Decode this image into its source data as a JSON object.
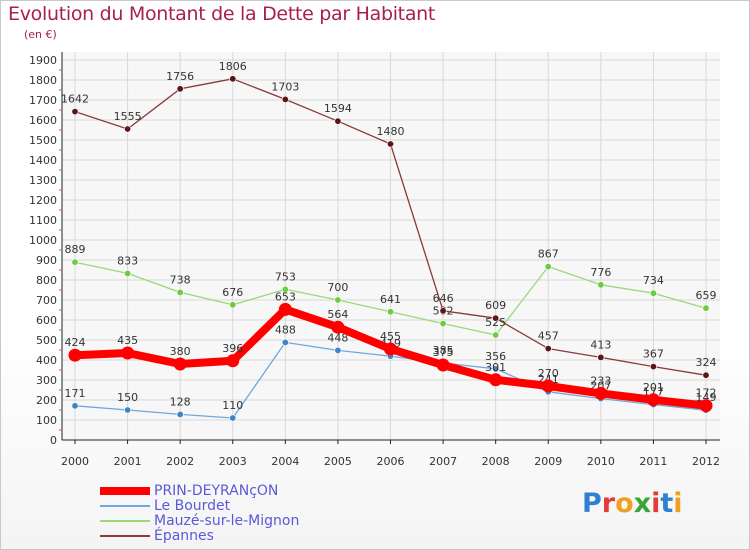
{
  "header": {
    "title": "Evolution du Montant de la Dette par Habitant",
    "subtitle": "(en €)"
  },
  "logo": {
    "text": "Proxiti"
  },
  "chart_data": {
    "type": "line",
    "title": "Evolution du Montant de la Dette par Habitant",
    "subtitle": "(en €)",
    "xlabel": "",
    "ylabel": "",
    "categories": [
      "2000",
      "2001",
      "2002",
      "2003",
      "2004",
      "2005",
      "2006",
      "2007",
      "2008",
      "2009",
      "2010",
      "2011",
      "2012"
    ],
    "ylim": [
      0,
      1900
    ],
    "yticks": [
      0,
      100,
      200,
      300,
      400,
      500,
      600,
      700,
      800,
      900,
      1000,
      1100,
      1200,
      1300,
      1400,
      1500,
      1600,
      1700,
      1800,
      1900
    ],
    "grid": true,
    "legend_placement": "bottom",
    "series": [
      {
        "name": "Mauzé-sur-le-Mignon",
        "color": "#99d97a",
        "marker": "#6ccc3e",
        "values": [
          889,
          833,
          738,
          676,
          753,
          700,
          641,
          582,
          525,
          867,
          776,
          734,
          659
        ],
        "labels": [
          "889",
          "833",
          "738",
          "676",
          "753",
          "700",
          "641",
          "582",
          "525",
          "867",
          "776",
          "734",
          "659"
        ]
      },
      {
        "name": "Épannes",
        "color": "#8b3a3a",
        "marker": "#5c1414",
        "values": [
          1642,
          1555,
          1756,
          1806,
          1703,
          1594,
          1480,
          646,
          609,
          457,
          413,
          367,
          324
        ],
        "labels": [
          "1642",
          "1555",
          "1756",
          "1806",
          "1703",
          "1594",
          "1480",
          "646",
          "609",
          "457",
          "413",
          "367",
          "324"
        ]
      },
      {
        "name": "Le Bourdet",
        "color": "#6fa8dc",
        "marker": "#3d85c6",
        "values": [
          171,
          150,
          128,
          110,
          488,
          448,
          419,
          385,
          356,
          241,
          207,
          177,
          149
        ],
        "labels": [
          "171",
          "150",
          "128",
          "110",
          "488",
          "448",
          "419",
          "385",
          "356",
          "241",
          "207",
          "177",
          "149"
        ]
      },
      {
        "name": "PRIN-DEYRANçON",
        "color": "#ff0000",
        "marker": "#ff0000",
        "values": [
          424,
          435,
          380,
          396,
          653,
          564,
          455,
          375,
          301,
          270,
          233,
          201,
          172
        ],
        "labels": [
          "424",
          "435",
          "380",
          "396",
          "653",
          "564",
          "455",
          "375",
          "301",
          "270",
          "233",
          "201",
          "172"
        ]
      }
    ]
  },
  "legend": {
    "items": [
      {
        "label": "PRIN-DEYRANçON",
        "color": "#ff0000"
      },
      {
        "label": "Le Bourdet",
        "color": "#6fa8dc"
      },
      {
        "label": "Mauzé-sur-le-Mignon",
        "color": "#99d97a"
      },
      {
        "label": "Épannes",
        "color": "#8b3a3a"
      }
    ]
  }
}
